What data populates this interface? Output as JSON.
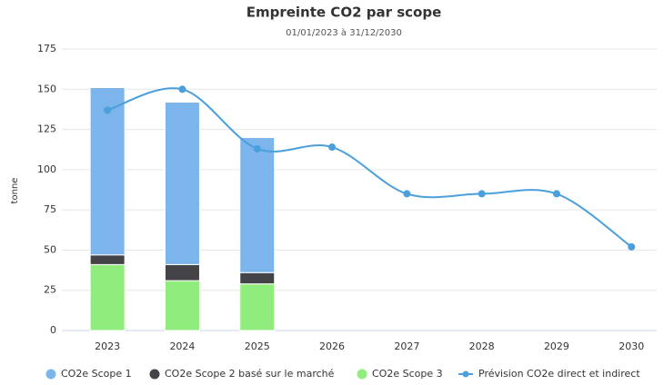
{
  "chart_data": {
    "type": "bar",
    "stacked": true,
    "title": "Empreinte CO2 par scope",
    "subtitle": "01/01/2023 à 31/12/2030",
    "y_label": "tonne",
    "categories": [
      "2023",
      "2024",
      "2025",
      "2026",
      "2027",
      "2028",
      "2029",
      "2030"
    ],
    "series": [
      {
        "name": "CO2e Scope 1",
        "type": "bar",
        "color": "#7cb5ec",
        "values": [
          104,
          101,
          84,
          null,
          null,
          null,
          null,
          null
        ]
      },
      {
        "name": "CO2e Scope 2 basé sur le marché",
        "type": "bar",
        "color": "#434348",
        "values": [
          6,
          10,
          7,
          null,
          null,
          null,
          null,
          null
        ]
      },
      {
        "name": "CO2e Scope 3",
        "type": "bar",
        "color": "#90ed7d",
        "values": [
          41,
          31,
          29,
          null,
          null,
          null,
          null,
          null
        ]
      },
      {
        "name": "Prévision CO2e direct et indirect",
        "type": "line",
        "color": "#4a9fdc",
        "values": [
          137,
          150,
          113,
          114,
          85,
          85,
          85,
          52
        ]
      }
    ],
    "ylim": [
      0,
      175
    ],
    "yticks": [
      0,
      25,
      50,
      75,
      100,
      125,
      150,
      175
    ],
    "grid": true
  }
}
